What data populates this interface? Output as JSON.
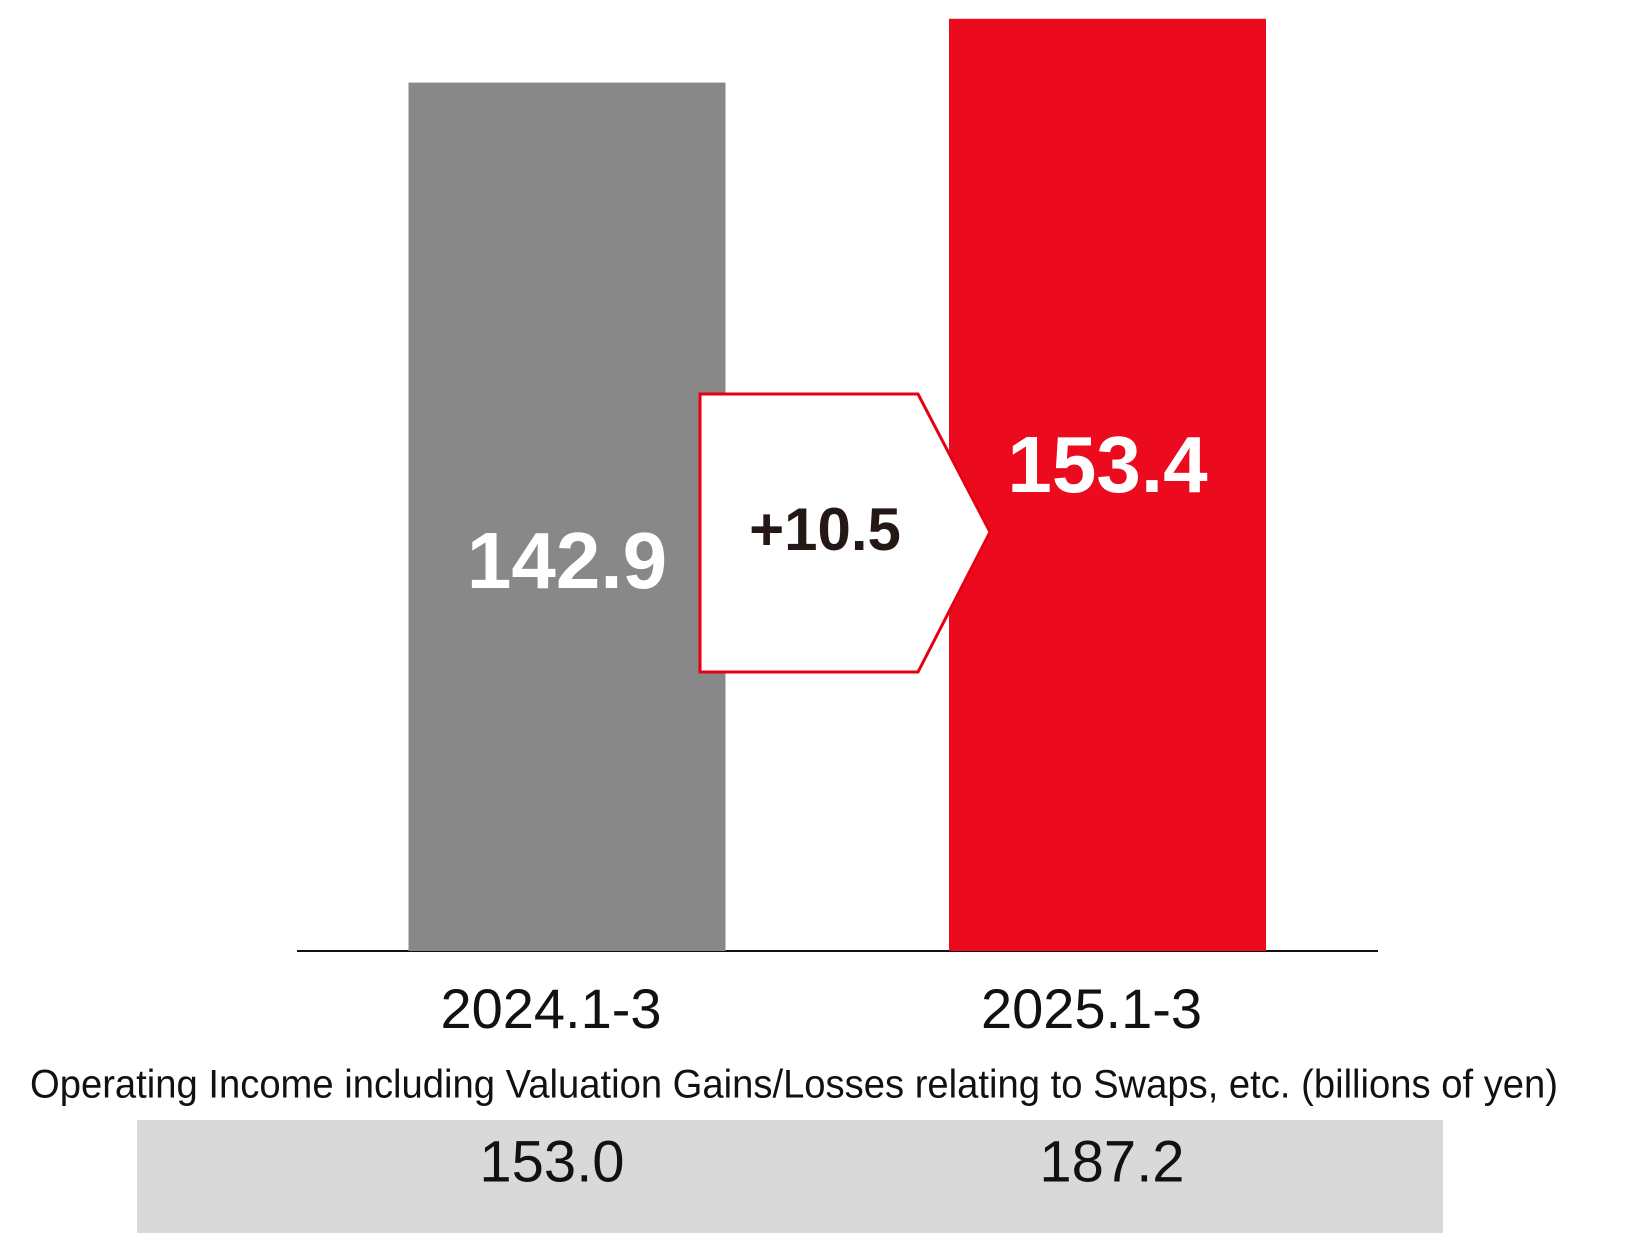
{
  "chart_data": {
    "type": "bar",
    "categories": [
      "2024.1-3",
      "2025.1-3"
    ],
    "values": [
      142.9,
      153.4
    ],
    "colors": [
      "#888888",
      "#eb0a1e"
    ],
    "ylim": [
      0,
      156
    ],
    "annotation": "+10.5",
    "note": "Operating Income including Valuation Gains/Losses relating to Swaps, etc.  (billions of yen)",
    "table": {
      "values": [
        153.0,
        187.2
      ],
      "value_labels": [
        "153.0",
        "187.2"
      ]
    }
  }
}
